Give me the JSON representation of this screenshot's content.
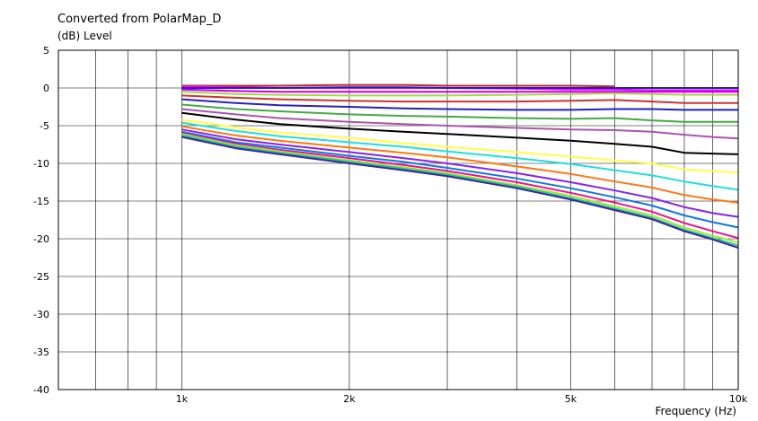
{
  "chart_data": {
    "type": "line",
    "title": "Converted from PolarMap_D",
    "ylabel": "(dB)  Level",
    "xlabel": "Frequency  (Hz)",
    "xscale": "log",
    "xlim": [
      600,
      10000
    ],
    "ylim": [
      -40,
      5
    ],
    "grid": true,
    "ytick_values": [
      5,
      0,
      -5,
      -10,
      -15,
      -20,
      -25,
      -30,
      -35,
      -40
    ],
    "ytick_labels": [
      "5",
      "0",
      "-5",
      "-10",
      "-15",
      "-20",
      "-25",
      "-30",
      "-35",
      "-40"
    ],
    "xtick_values": [
      1000,
      2000,
      5000,
      10000
    ],
    "xtick_labels": [
      "1k",
      "2k",
      "5k",
      "10k"
    ],
    "x_grid_values": [
      700,
      800,
      900,
      1000,
      2000,
      3000,
      4000,
      5000,
      6000,
      7000,
      8000,
      9000,
      10000
    ],
    "x": [
      1000,
      1250,
      1500,
      2000,
      2500,
      3000,
      4000,
      5000,
      6000,
      7000,
      8000,
      9000,
      10000
    ],
    "series": [
      {
        "color": "#cc2233",
        "values": [
          0.3,
          0.3,
          0.3,
          0.4,
          0.4,
          0.3,
          0.3,
          0.3,
          0.2,
          null,
          null,
          null,
          null
        ]
      },
      {
        "color": "#ff00ff",
        "values": [
          0.2,
          0.1,
          0.0,
          0.0,
          0.0,
          0.0,
          -0.1,
          -0.2,
          -0.2,
          -0.3,
          -0.3,
          -0.3,
          -0.3
        ]
      },
      {
        "color": "#1e1ec8",
        "values": [
          0.0,
          0.0,
          0.0,
          0.1,
          0.1,
          0.0,
          0.0,
          0.0,
          0.0,
          0.0,
          0.0,
          0.0,
          0.0
        ]
      },
      {
        "color": "#cc00cc",
        "values": [
          -0.2,
          -0.4,
          -0.5,
          -0.5,
          -0.5,
          -0.5,
          -0.5,
          -0.5,
          -0.5,
          -0.5,
          -0.5,
          -0.5,
          -0.5
        ]
      },
      {
        "color": "#99dd44",
        "values": [
          -0.5,
          -0.8,
          -0.9,
          -1.0,
          -1.0,
          -1.0,
          -0.9,
          -0.8,
          -0.7,
          -0.8,
          -0.9,
          -0.9,
          -0.9
        ]
      },
      {
        "color": "#cc3333",
        "values": [
          -1.0,
          -1.3,
          -1.5,
          -1.7,
          -1.8,
          -1.8,
          -1.8,
          -1.7,
          -1.6,
          -1.8,
          -2.0,
          -2.0,
          -2.0
        ]
      },
      {
        "color": "#2222bb",
        "values": [
          -1.5,
          -2.0,
          -2.3,
          -2.5,
          -2.7,
          -2.8,
          -2.9,
          -2.9,
          -2.8,
          -2.8,
          -2.9,
          -2.9,
          -2.9
        ]
      },
      {
        "color": "#44aa44",
        "values": [
          -2.2,
          -2.8,
          -3.1,
          -3.5,
          -3.7,
          -3.8,
          -4.0,
          -4.1,
          -4.0,
          -4.3,
          -4.5,
          -4.5,
          -4.5
        ]
      },
      {
        "color": "#aa55aa",
        "values": [
          -2.8,
          -3.5,
          -4.0,
          -4.5,
          -4.8,
          -5.0,
          -5.3,
          -5.5,
          -5.6,
          -5.8,
          -6.2,
          -6.5,
          -6.7
        ]
      },
      {
        "color": "#000000",
        "values": [
          -3.3,
          -4.2,
          -4.8,
          -5.4,
          -5.8,
          -6.1,
          -6.6,
          -7.0,
          -7.4,
          -7.8,
          -8.6,
          -8.7,
          -8.8
        ]
      },
      {
        "color": "#ffff44",
        "values": [
          -4.2,
          -5.2,
          -5.9,
          -6.6,
          -7.3,
          -7.8,
          -8.5,
          -9.1,
          -9.6,
          -10.0,
          -10.8,
          -11.0,
          -11.2
        ]
      },
      {
        "color": "#22dddd",
        "values": [
          -4.6,
          -5.7,
          -6.4,
          -7.2,
          -7.8,
          -8.4,
          -9.3,
          -10.1,
          -10.9,
          -11.6,
          -12.4,
          -13.0,
          -13.5
        ]
      },
      {
        "color": "#ff7711",
        "values": [
          -5.1,
          -6.3,
          -7.0,
          -7.9,
          -8.6,
          -9.2,
          -10.4,
          -11.4,
          -12.4,
          -13.2,
          -14.2,
          -14.8,
          -15.2
        ]
      },
      {
        "color": "#8822ee",
        "values": [
          -5.5,
          -6.8,
          -7.5,
          -8.5,
          -9.3,
          -10.0,
          -11.3,
          -12.5,
          -13.6,
          -14.6,
          -15.8,
          -16.6,
          -17.1
        ]
      },
      {
        "color": "#1177dd",
        "values": [
          -5.8,
          -7.2,
          -7.9,
          -9.0,
          -9.8,
          -10.6,
          -12.0,
          -13.3,
          -14.5,
          -15.6,
          -16.9,
          -17.8,
          -18.5
        ]
      },
      {
        "color": "#ee1188",
        "values": [
          -6.0,
          -7.4,
          -8.2,
          -9.3,
          -10.2,
          -11.0,
          -12.5,
          -13.9,
          -15.2,
          -16.4,
          -17.9,
          -19.0,
          -19.9
        ]
      },
      {
        "color": "#99ee33",
        "values": [
          -6.1,
          -7.6,
          -8.4,
          -9.6,
          -10.5,
          -11.3,
          -12.9,
          -14.3,
          -15.7,
          -16.9,
          -18.5,
          -19.6,
          -20.5
        ]
      },
      {
        "color": "#22bbaa",
        "values": [
          -6.3,
          -7.8,
          -8.6,
          -9.8,
          -10.7,
          -11.5,
          -13.1,
          -14.6,
          -16.0,
          -17.2,
          -18.8,
          -19.9,
          -20.9
        ]
      },
      {
        "color": "#442299",
        "values": [
          -6.5,
          -8.0,
          -8.8,
          -10.0,
          -10.9,
          -11.7,
          -13.3,
          -14.8,
          -16.2,
          -17.4,
          -19.0,
          -20.1,
          -21.2
        ]
      }
    ]
  }
}
